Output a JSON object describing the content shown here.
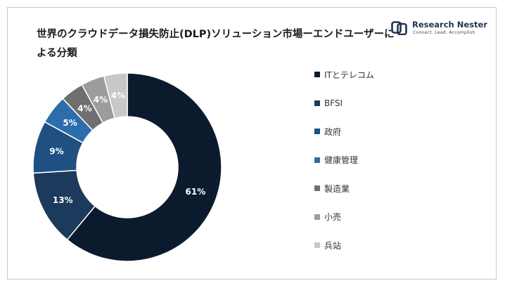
{
  "title": "世界のクラウドデータ損失防止(DLP)ソリューション市場ーエンドユーザーによる分類",
  "logo": {
    "name": "Research Nester",
    "tagline": "Connect. Lead. Accomplish"
  },
  "chart_data": {
    "type": "donut",
    "title": "世界のクラウドデータ損失防止(DLP)ソリューション市場ーエンドユーザーによる分類",
    "legend_position": "right",
    "categories": [
      "ITとテレコム",
      "BFSI",
      "政府",
      "健康管理",
      "製造業",
      "小売",
      "兵站"
    ],
    "values": [
      61,
      13,
      9,
      5,
      4,
      4,
      4
    ],
    "data_labels": [
      "61%",
      "13%",
      "9%",
      "5%",
      "4%",
      "4%",
      "4%"
    ],
    "unit": "%",
    "colors": [
      "#0c1a2e",
      "#1b3a5c",
      "#204f82",
      "#2d6eaa",
      "#6f6f6f",
      "#9c9c9c",
      "#c8c8c8"
    ]
  }
}
